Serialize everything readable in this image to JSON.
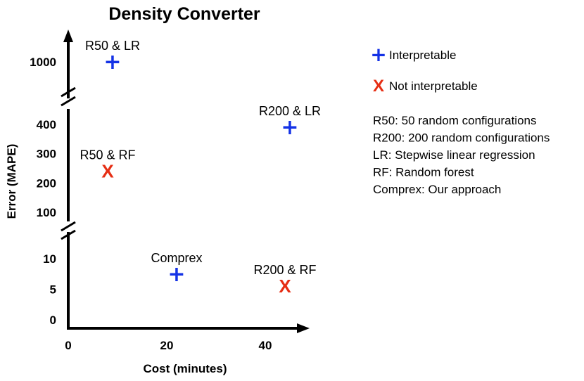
{
  "chart_data": {
    "type": "scatter",
    "title": "Density Converter",
    "xlabel": "Cost (minutes)",
    "ylabel": "Error (MAPE)",
    "x_ticks": [
      "0",
      "20",
      "40"
    ],
    "y_ticks": [
      "0",
      "5",
      "10",
      "100",
      "200",
      "300",
      "400",
      "1000"
    ],
    "y_axis_broken": true,
    "xlim": [
      0,
      48
    ],
    "points": [
      {
        "label": "R50 & LR",
        "x": 9,
        "y": 1000,
        "interpretable": true
      },
      {
        "label": "R200 & LR",
        "x": 45,
        "y": 390,
        "interpretable": true
      },
      {
        "label": "R50 & RF",
        "x": 8,
        "y": 240,
        "interpretable": false
      },
      {
        "label": "Comprex",
        "x": 22,
        "y": 7.5,
        "interpretable": true
      },
      {
        "label": "R200 & RF",
        "x": 44,
        "y": 5.5,
        "interpretable": false
      }
    ],
    "legend": {
      "placement": "right",
      "entries": [
        {
          "name": "Interpretable",
          "marker": "plus",
          "color": "#1432e6"
        },
        {
          "name": "Not interpretable",
          "marker": "x",
          "color": "#e62e14"
        }
      ]
    },
    "notes": [
      "R50: 50 random configurations",
      "R200: 200 random configurations",
      "LR: Stepwise linear regression",
      "RF: Random forest",
      "Comprex: Our approach"
    ]
  },
  "markers": {
    "plus": "+",
    "x": "X"
  },
  "colors": {
    "interpretable": "#1432e6",
    "not_interpretable": "#e62e14",
    "axis": "#000000"
  }
}
